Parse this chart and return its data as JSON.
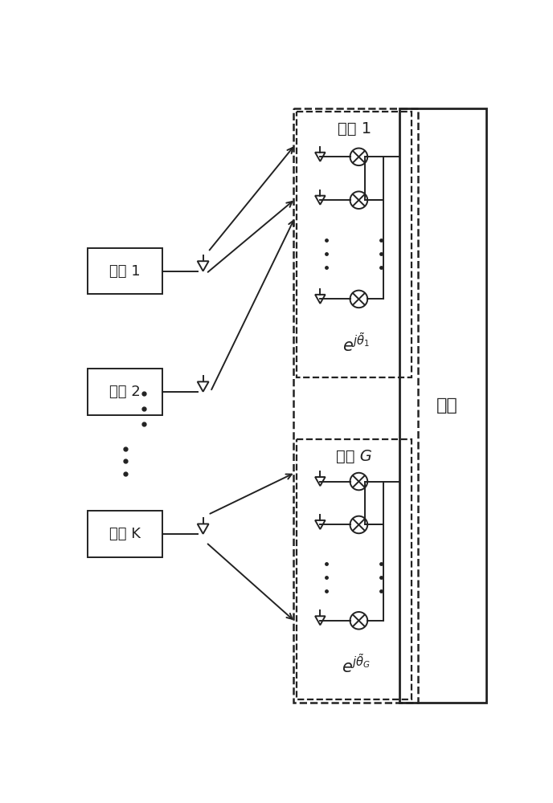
{
  "bg_color": "#ffffff",
  "line_color": "#222222",
  "fig_width": 6.88,
  "fig_height": 10.0,
  "group1_label": "分组 1",
  "groupG_label": "分组 G",
  "base_station_label": "基站",
  "user1_label": "用户 1",
  "user2_label": "用户 2",
  "userK_label": "用户 K"
}
